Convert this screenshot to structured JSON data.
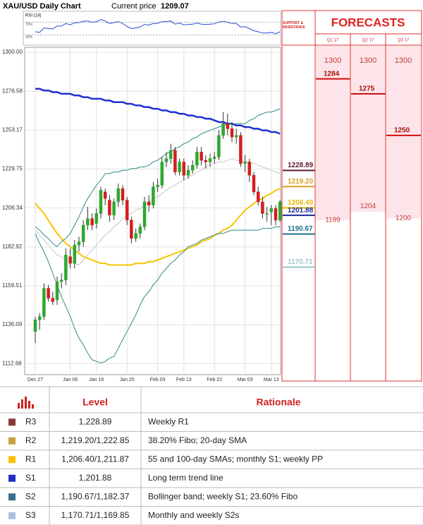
{
  "header": {
    "title": "XAU/USD Daily Chart",
    "current_price_label": "Current price",
    "current_price": 1209.07
  },
  "chart_data": [
    {
      "type": "candlestick",
      "categories": [
        "Dec 27",
        null,
        null,
        null,
        null,
        null,
        null,
        null,
        "Jan 06",
        null,
        null,
        null,
        null,
        null,
        "Jan 16",
        null,
        null,
        null,
        null,
        null,
        null,
        "Jan 25",
        null,
        null,
        null,
        null,
        null,
        null,
        "Feb 03",
        null,
        null,
        null,
        null,
        null,
        "Feb 13",
        null,
        null,
        null,
        null,
        null,
        null,
        "Feb 22",
        null,
        null,
        null,
        null,
        null,
        null,
        "Mar 03",
        null,
        null,
        null,
        null,
        null,
        "Mar 13",
        null,
        null
      ],
      "open": [
        1132,
        1139,
        1141,
        1158,
        1152,
        1151,
        1162,
        1163,
        1177,
        1173,
        1184,
        1186,
        1196,
        1200,
        1197,
        1203,
        1216,
        1211,
        1202,
        1210,
        1218,
        1211,
        1199,
        1188,
        1191,
        1195,
        1210,
        1208,
        1219,
        1220,
        1234,
        1236,
        1241,
        1228,
        1234,
        1226,
        1229,
        1232,
        1240,
        1235,
        1234,
        1236,
        1237,
        1250,
        1257,
        1254,
        1249,
        1250,
        1233,
        1234,
        1226,
        1216,
        1210,
        1203,
        1204,
        1206,
        1199
      ],
      "high": [
        1141,
        1143,
        1161,
        1160,
        1156,
        1165,
        1167,
        1182,
        1182,
        1187,
        1189,
        1199,
        1207,
        1203,
        1206,
        1219,
        1218,
        1214,
        1212,
        1221,
        1220,
        1213,
        1201,
        1194,
        1197,
        1213,
        1214,
        1222,
        1224,
        1237,
        1240,
        1245,
        1243,
        1236,
        1236,
        1232,
        1235,
        1243,
        1243,
        1238,
        1239,
        1240,
        1253,
        1264,
        1263,
        1258,
        1254,
        1252,
        1238,
        1236,
        1228,
        1219,
        1213,
        1207,
        1208,
        1208,
        1211
      ],
      "low": [
        1125,
        1133,
        1139,
        1150,
        1148,
        1148,
        1158,
        1160,
        1170,
        1170,
        1180,
        1183,
        1193,
        1193,
        1194,
        1200,
        1208,
        1198,
        1199,
        1207,
        1208,
        1196,
        1185,
        1186,
        1188,
        1193,
        1204,
        1206,
        1216,
        1218,
        1231,
        1233,
        1226,
        1226,
        1223,
        1224,
        1227,
        1230,
        1232,
        1230,
        1231,
        1233,
        1235,
        1248,
        1250,
        1246,
        1245,
        1231,
        1228,
        1222,
        1214,
        1208,
        1200,
        1198,
        1196,
        1196,
        1198
      ],
      "close": [
        1139,
        1141,
        1158,
        1152,
        1150,
        1162,
        1163,
        1178,
        1173,
        1184,
        1186,
        1196,
        1200,
        1196,
        1203,
        1217,
        1212,
        1202,
        1210,
        1218,
        1211,
        1199,
        1188,
        1191,
        1195,
        1210,
        1208,
        1219,
        1220,
        1234,
        1236,
        1241,
        1228,
        1234,
        1226,
        1229,
        1232,
        1240,
        1235,
        1234,
        1236,
        1237,
        1250,
        1257,
        1254,
        1249,
        1250,
        1233,
        1234,
        1226,
        1216,
        1210,
        1203,
        1203,
        1206,
        1199,
        1210
      ],
      "up_color": "#2ea82e",
      "down_color": "#d21f1f",
      "series": [
        {
          "color": "#1f2fd0",
          "width": 2.5,
          "values": [
            1278,
            1278,
            1277,
            1277,
            1276,
            1276,
            1275,
            1275,
            1275,
            1274,
            1274,
            1273,
            1273,
            1272,
            1272,
            1272,
            1271,
            1271,
            1270,
            1270,
            1270,
            1269,
            1269,
            1268,
            1268,
            1267,
            1267,
            1266,
            1266,
            1265,
            1265,
            1264,
            1264,
            1263,
            1263,
            1262,
            1262,
            1261,
            1261,
            1260,
            1260,
            1259,
            1258,
            1258,
            1257,
            1257,
            1256,
            1256,
            1255,
            1255,
            1254,
            1254,
            1253,
            1253,
            1252,
            1252,
            1251
          ]
        },
        {
          "color": "#f5c400",
          "width": 2,
          "values": [
            1209,
            1206,
            1203,
            1199,
            1195,
            1191,
            1188,
            1185,
            1183,
            1181,
            1179,
            1177,
            1176,
            1175,
            1174,
            1173,
            1173,
            1172,
            1172,
            1172,
            1172,
            1172,
            1172,
            1173,
            1173,
            1173,
            1174,
            1174,
            1175,
            1176,
            1177,
            1178,
            1179,
            1180,
            1181,
            1182,
            1183,
            1184,
            1186,
            1187,
            1188,
            1190,
            1191,
            1193,
            1194,
            1196,
            1199,
            1202,
            1205,
            1207,
            1209,
            1211,
            1212,
            1214,
            1215,
            1217,
            1218
          ]
        },
        {
          "color": "#2f8a8a",
          "width": 1,
          "values": [
            1195,
            1193,
            1190,
            1188,
            1185,
            1183,
            1186,
            1188,
            1191,
            1196,
            1201,
            1207,
            1212,
            1216,
            1220,
            1223,
            1227,
            1227,
            1228,
            1228,
            1229,
            1229,
            1230,
            1230,
            1231,
            1231,
            1232,
            1234,
            1235,
            1237,
            1239,
            1240,
            1242,
            1243,
            1245,
            1246,
            1248,
            1249,
            1251,
            1252,
            1253,
            1254,
            1255,
            1256,
            1257,
            1257,
            1257,
            1257,
            1257,
            1259,
            1260,
            1262,
            1263,
            1264,
            1264,
            1265,
            1266
          ]
        },
        {
          "color": "#2f8a8a",
          "width": 1,
          "values": [
            1191,
            1185,
            1180,
            1174,
            1167,
            1160,
            1153,
            1147,
            1141,
            1134,
            1128,
            1124,
            1119,
            1115,
            1114,
            1113,
            1114,
            1116,
            1117,
            1122,
            1127,
            1132,
            1137,
            1142,
            1148,
            1153,
            1156,
            1160,
            1163,
            1167,
            1170,
            1173,
            1175,
            1178,
            1180,
            1183,
            1184,
            1185,
            1187,
            1188,
            1189,
            1190,
            1191,
            1191,
            1192,
            1193,
            1193,
            1193,
            1193,
            1193,
            1193,
            1193,
            1194,
            1194,
            1194,
            1195,
            1195
          ]
        },
        {
          "color": "#c8c8c8",
          "width": 1,
          "values": [
            1193,
            1190,
            1187,
            1184,
            1181,
            1178,
            1177,
            1175,
            1174,
            1173,
            1172,
            1175,
            1178,
            1181,
            1184,
            1187,
            1190,
            1192,
            1195,
            1197,
            1200,
            1202,
            1203,
            1205,
            1206,
            1208,
            1210,
            1212,
            1213,
            1215,
            1217,
            1219,
            1220,
            1222,
            1223,
            1225,
            1226,
            1228,
            1229,
            1231,
            1232,
            1233,
            1234,
            1234,
            1235,
            1236,
            1235,
            1235,
            1234,
            1234,
            1233,
            1232,
            1231,
            1230,
            1229,
            1228,
            1227
          ]
        }
      ],
      "ylim": [
        1106,
        1303
      ],
      "yticks": [
        1112.68,
        1136.09,
        1159.51,
        1182.92,
        1206.34,
        1229.75,
        1253.17,
        1276.58,
        {
          "value": 1300,
          "label": "1300.00"
        }
      ],
      "grid": true
    },
    {
      "type": "line",
      "title": "RSI (14)",
      "color": "#2b4fd6",
      "values": [
        40,
        38,
        52,
        50,
        49,
        58,
        58,
        66,
        62,
        68,
        69,
        73,
        74,
        70,
        72,
        78,
        74,
        66,
        69,
        72,
        66,
        57,
        50,
        52,
        55,
        63,
        61,
        66,
        66,
        72,
        72,
        74,
        64,
        67,
        62,
        63,
        64,
        67,
        64,
        63,
        64,
        65,
        71,
        73,
        70,
        66,
        66,
        55,
        56,
        50,
        43,
        40,
        36,
        36,
        38,
        34,
        40
      ],
      "ylim": [
        0,
        100
      ],
      "yticks": [
        {
          "value": 70,
          "label": "70%"
        },
        {
          "value": 30,
          "label": "30%"
        }
      ]
    }
  ],
  "support_resistance": {
    "title": "SUPPORT & RESISTANCE",
    "values": [
      1228.89,
      1219.2,
      1206.4,
      1201.88,
      1190.67,
      1170.71
    ],
    "value_labels": [
      "1228.89",
      "1219.20",
      "1206.40",
      "1201.88",
      "1190.67",
      "1170.71"
    ],
    "colors": [
      "#5a1a2a",
      "#d4a02a",
      "#e8b400",
      "#1a2a9a",
      "#1f6f8f",
      "#9cc8c8"
    ]
  },
  "forecasts": {
    "title": "FORECASTS",
    "quarters": [
      "Q1 17",
      "Q2 17",
      "Q3 17"
    ],
    "high": [
      1300,
      1300,
      1300
    ],
    "target": [
      1284,
      1275,
      1250
    ],
    "low": [
      1199,
      1204,
      1200
    ]
  },
  "table": {
    "header": [
      "Level",
      "Rationale"
    ],
    "colors": [
      "#8b3a3a",
      "#c8a03c",
      "#ffc000",
      "#1f2fbf",
      "#3a6e8e",
      "#a9c4e0"
    ],
    "rows": [
      [
        "R3",
        "1,228.89",
        "Weekly R1"
      ],
      [
        "R2",
        "1,219.20/1,222.85",
        "38.20% Fibo; 20-day SMA"
      ],
      [
        "R1",
        "1,206.40/1,211.87",
        "55 and 100-day SMAs; monthly S1; weekly PP"
      ],
      [
        "S1",
        "1,201.88",
        "Long term trend line"
      ],
      [
        "S2",
        "1,190.67/1,182.37",
        "Bollinger band; weekly S1; 23.60% Fibo"
      ],
      [
        "S3",
        "1,170.71/1,169.85",
        "Monthly and weekly S2s"
      ]
    ]
  }
}
